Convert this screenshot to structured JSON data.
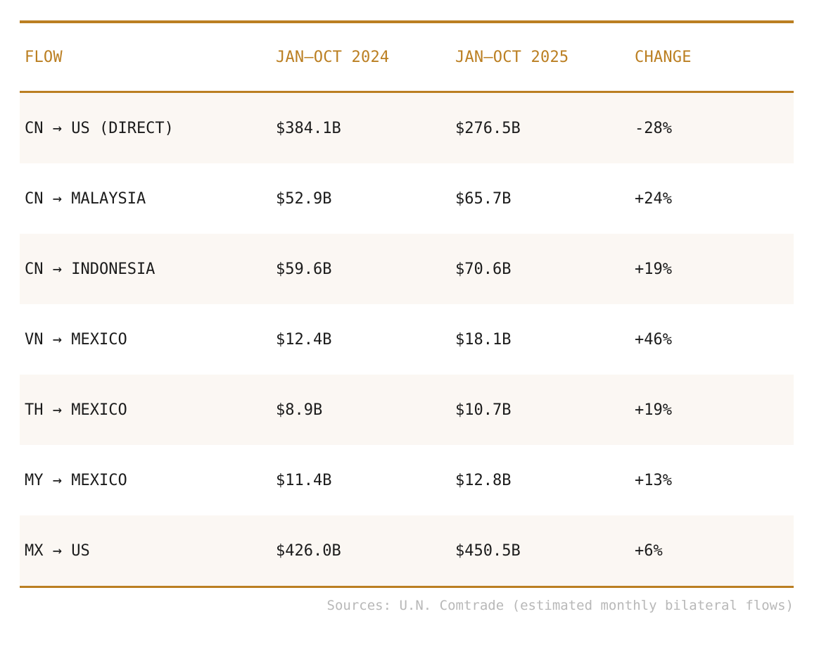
{
  "table": {
    "headers": {
      "flow": "FLOW",
      "period_2024": "JAN–OCT 2024",
      "period_2025": "JAN–OCT 2025",
      "change": "CHANGE"
    },
    "rows": [
      {
        "flow": "CN → US (DIRECT)",
        "v2024": "$384.1B",
        "v2025": "$276.5B",
        "change": "-28%"
      },
      {
        "flow": "CN → MALAYSIA",
        "v2024": "$52.9B",
        "v2025": "$65.7B",
        "change": "+24%"
      },
      {
        "flow": "CN → INDONESIA",
        "v2024": "$59.6B",
        "v2025": "$70.6B",
        "change": "+19%"
      },
      {
        "flow": "VN → MEXICO",
        "v2024": "$12.4B",
        "v2025": "$18.1B",
        "change": "+46%"
      },
      {
        "flow": "TH → MEXICO",
        "v2024": "$8.9B",
        "v2025": "$10.7B",
        "change": "+19%"
      },
      {
        "flow": "MY → MEXICO",
        "v2024": "$11.4B",
        "v2025": "$12.8B",
        "change": "+13%"
      },
      {
        "flow": "MX → US",
        "v2024": "$426.0B",
        "v2025": "$450.5B",
        "change": "+6%"
      }
    ]
  },
  "footer": {
    "source": "Sources: U.N. Comtrade (estimated monthly bilateral flows)"
  },
  "colors": {
    "accent": "#bb7f22",
    "row_alt": "#fbf7f3",
    "text": "#1b1b1b",
    "muted": "#b8b8b8"
  }
}
